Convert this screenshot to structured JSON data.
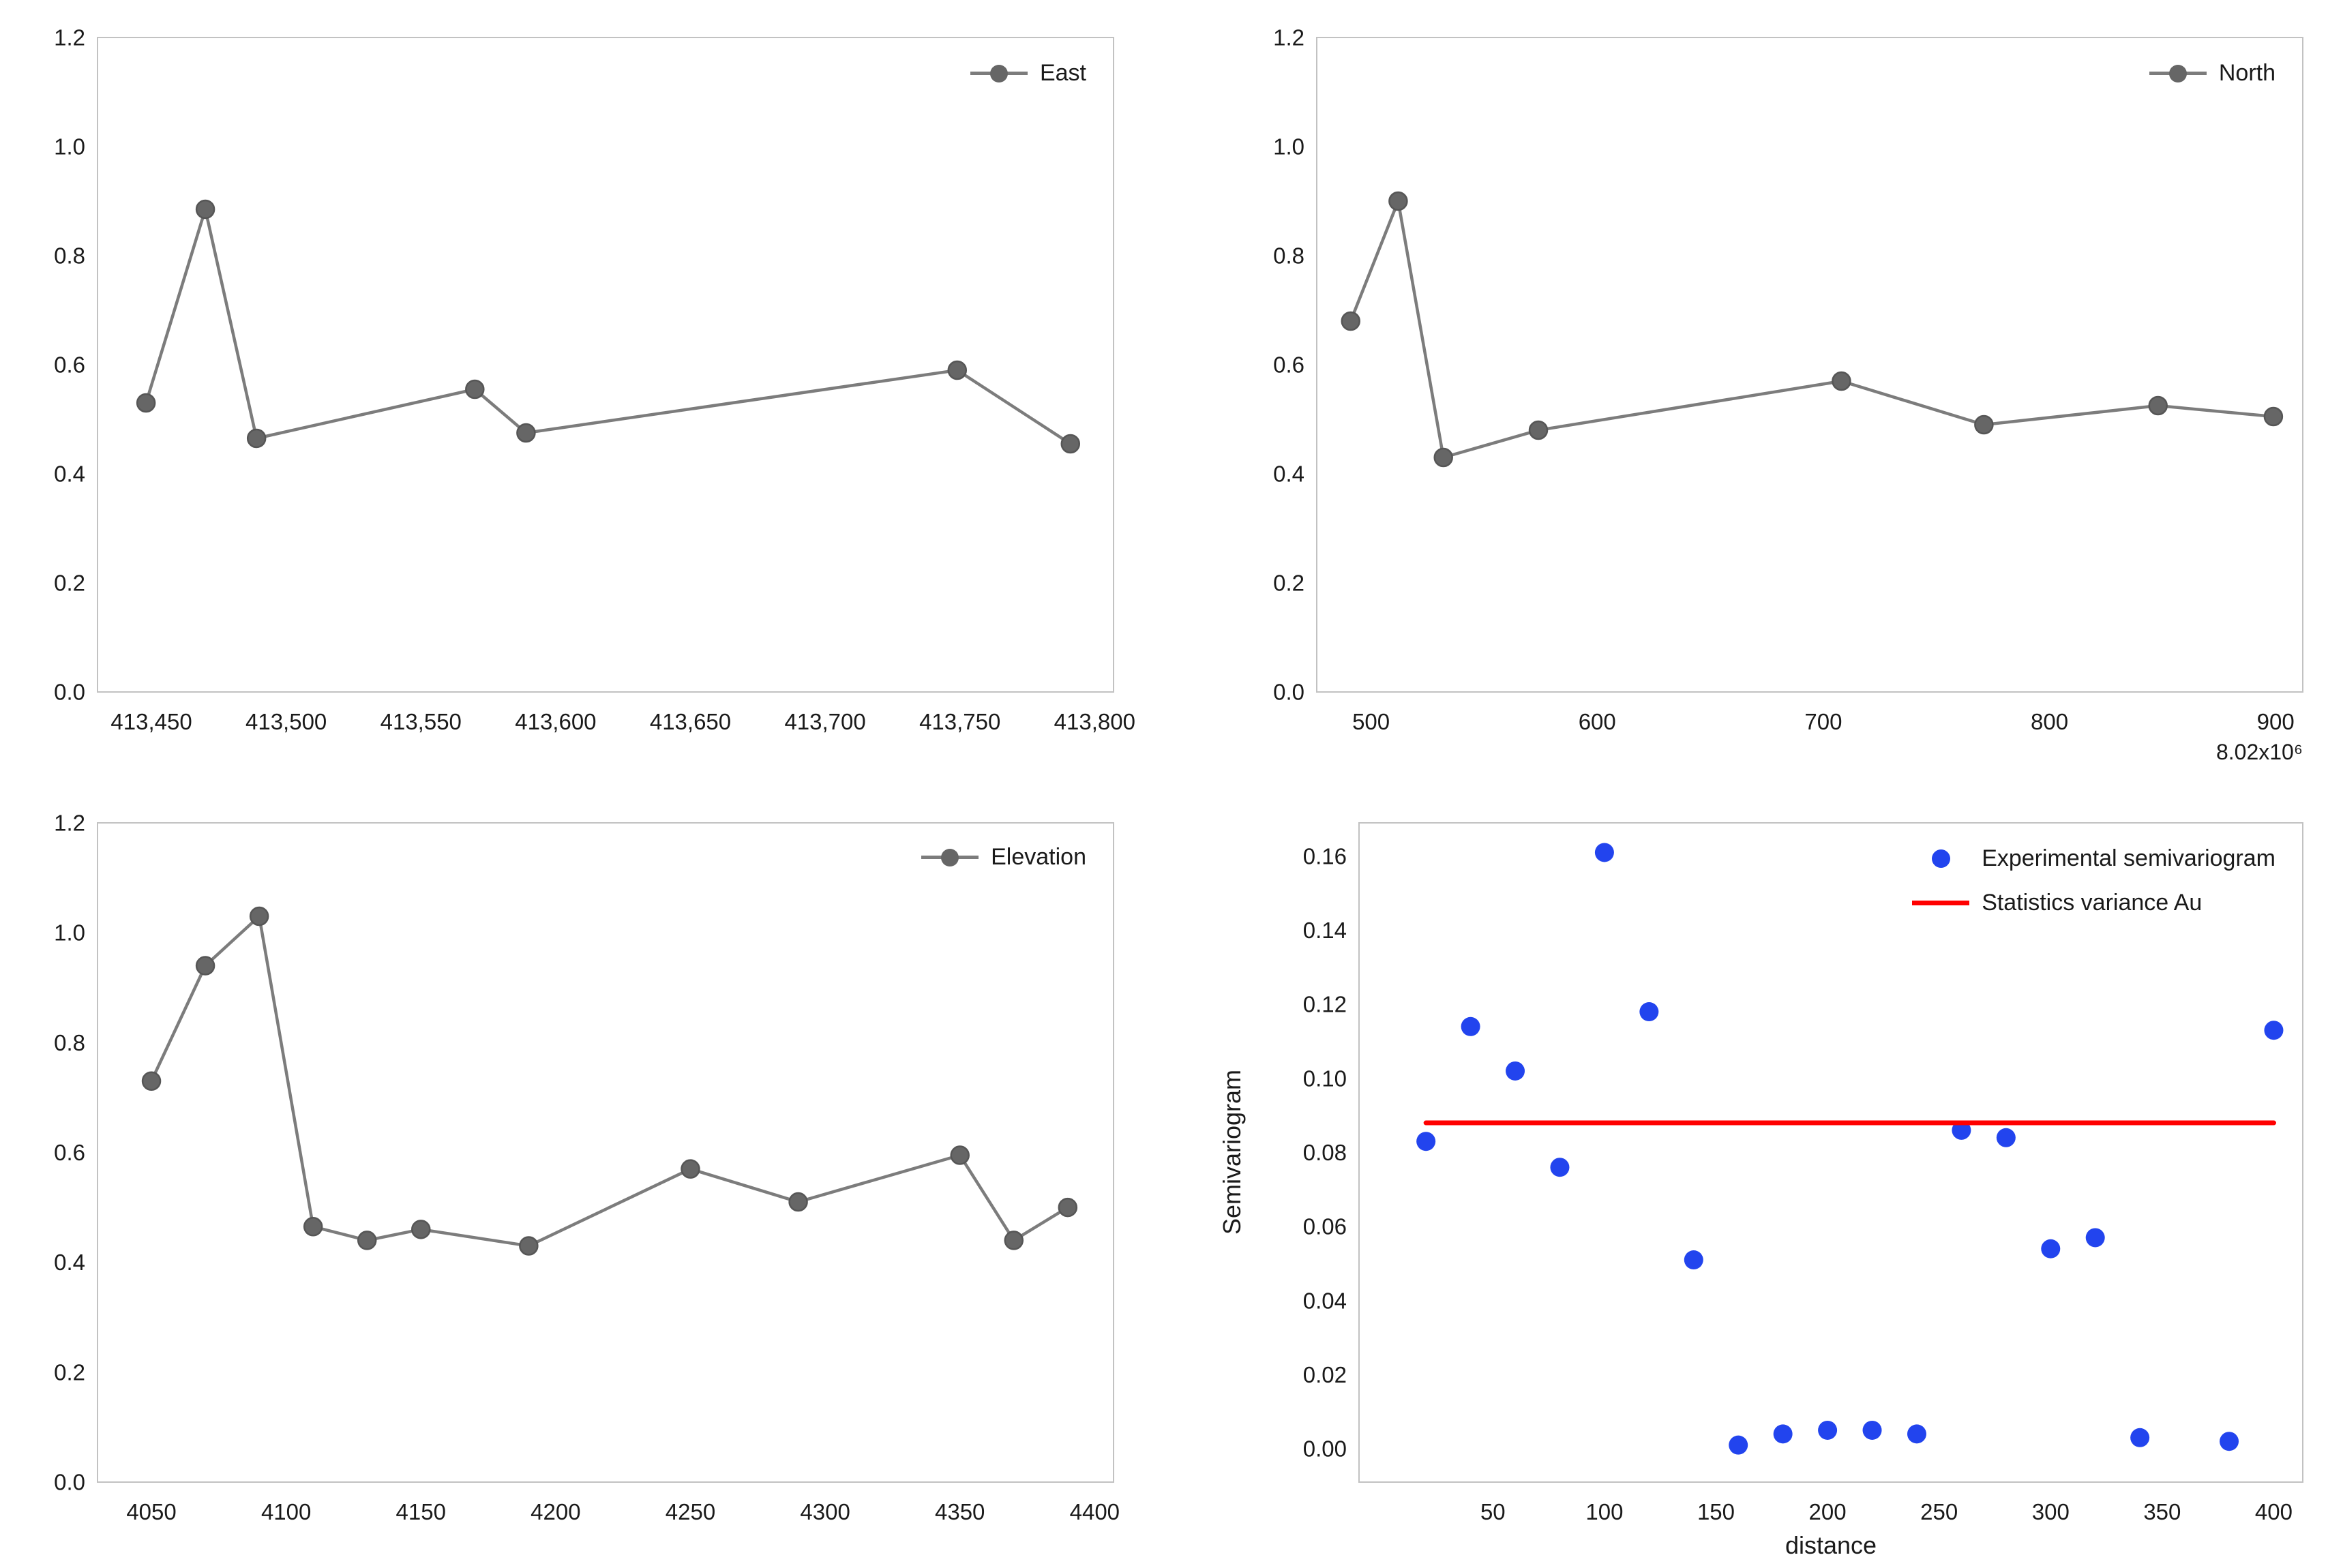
{
  "figure": {
    "background": "#ffffff",
    "text_color": "#1a1a1a",
    "axis_border_color": "#c2c2c2"
  },
  "chart_data": [
    {
      "id": "east",
      "type": "line",
      "title": "",
      "legend": [
        {
          "label": "East",
          "swatch": "line-marker",
          "line_color": "#7c7c7c",
          "marker_color": "#666666"
        }
      ],
      "xlim": [
        413430,
        413807
      ],
      "ylim": [
        0,
        1.2
      ],
      "grid": false,
      "legend_position": "top-right-inside",
      "xticks": {
        "values": [
          413450,
          413500,
          413550,
          413600,
          413650,
          413700,
          413750,
          413800
        ],
        "labels": [
          "413,450",
          "413,500",
          "413,550",
          "413,600",
          "413,650",
          "413,700",
          "413,750",
          "413,800"
        ]
      },
      "yticks": {
        "values": [
          0,
          0.2,
          0.4,
          0.6,
          0.8,
          1,
          1.2
        ],
        "labels": [
          "0.0",
          "0.2",
          "0.4",
          "0.6",
          "0.8",
          "1.0",
          "1.2"
        ]
      },
      "series": [
        {
          "name": "East",
          "type": "line",
          "color": "#7c7c7c",
          "line_width": 4.5,
          "marker": {
            "color": "#666666",
            "edge_color": "#565656",
            "radius": 13
          },
          "x": [
            413448,
            413470,
            413489,
            413570,
            413589,
            413749,
            413791
          ],
          "y": [
            0.53,
            0.885,
            0.465,
            0.555,
            0.475,
            0.59,
            0.455
          ]
        }
      ]
    },
    {
      "id": "north",
      "type": "line",
      "title": "",
      "legend": [
        {
          "label": "North",
          "swatch": "line-marker",
          "line_color": "#7c7c7c",
          "marker_color": "#666666"
        }
      ],
      "x_offset_label": "8.02x10⁶",
      "xlim": [
        476,
        912
      ],
      "ylim": [
        0,
        1.2
      ],
      "grid": false,
      "legend_position": "top-right-inside",
      "xticks": {
        "values": [
          500,
          600,
          700,
          800,
          900
        ],
        "labels": [
          "500",
          "600",
          "700",
          "800",
          "900"
        ]
      },
      "yticks": {
        "values": [
          0,
          0.2,
          0.4,
          0.6,
          0.8,
          1,
          1.2
        ],
        "labels": [
          "0.0",
          "0.2",
          "0.4",
          "0.6",
          "0.8",
          "1.0",
          "1.2"
        ]
      },
      "series": [
        {
          "name": "North",
          "type": "line",
          "color": "#7c7c7c",
          "line_width": 4.5,
          "marker": {
            "color": "#666666",
            "edge_color": "#565656",
            "radius": 13
          },
          "x": [
            491,
            512,
            532,
            574,
            708,
            771,
            848,
            899
          ],
          "y": [
            0.68,
            0.9,
            0.43,
            0.48,
            0.57,
            0.49,
            0.525,
            0.505
          ]
        }
      ]
    },
    {
      "id": "elevation",
      "type": "line",
      "title": "",
      "legend": [
        {
          "label": "Elevation",
          "swatch": "line-marker",
          "line_color": "#7c7c7c",
          "marker_color": "#666666"
        }
      ],
      "xlim": [
        4030,
        4407
      ],
      "ylim": [
        0,
        1.2
      ],
      "grid": false,
      "legend_position": "top-right-inside",
      "xticks": {
        "values": [
          4050,
          4100,
          4150,
          4200,
          4250,
          4300,
          4350,
          4400
        ],
        "labels": [
          "4050",
          "4100",
          "4150",
          "4200",
          "4250",
          "4300",
          "4350",
          "4400"
        ]
      },
      "yticks": {
        "values": [
          0,
          0.2,
          0.4,
          0.6,
          0.8,
          1,
          1.2
        ],
        "labels": [
          "0.0",
          "0.2",
          "0.4",
          "0.6",
          "0.8",
          "1.0",
          "1.2"
        ]
      },
      "series": [
        {
          "name": "Elevation",
          "type": "line",
          "color": "#7c7c7c",
          "line_width": 4.5,
          "marker": {
            "color": "#666666",
            "edge_color": "#565656",
            "radius": 13
          },
          "x": [
            4050,
            4070,
            4090,
            4110,
            4130,
            4150,
            4190,
            4250,
            4290,
            4350,
            4370,
            4390
          ],
          "y": [
            0.73,
            0.94,
            1.03,
            0.465,
            0.44,
            0.46,
            0.43,
            0.57,
            0.51,
            0.595,
            0.44,
            0.5
          ]
        }
      ]
    },
    {
      "id": "semivariogram",
      "type": "scatter",
      "title": "",
      "xlabel": "distance",
      "ylabel": "Semivariogram",
      "legend": [
        {
          "label": "Experimental semivariogram",
          "swatch": "dot",
          "color": "#2244ee"
        },
        {
          "label": "Statistics variance Au",
          "swatch": "line",
          "color": "#ff0000"
        }
      ],
      "xlim": [
        -10,
        413
      ],
      "ylim": [
        -0.009,
        0.169
      ],
      "grid": false,
      "legend_position": "top-right-inside",
      "xticks": {
        "values": [
          50,
          100,
          150,
          200,
          250,
          300,
          350,
          400
        ],
        "labels": [
          "50",
          "100",
          "150",
          "200",
          "250",
          "300",
          "350",
          "400"
        ]
      },
      "yticks": {
        "values": [
          0,
          0.02,
          0.04,
          0.06,
          0.08,
          0.1,
          0.12,
          0.14,
          0.16
        ],
        "labels": [
          "0.00",
          "0.02",
          "0.04",
          "0.06",
          "0.08",
          "0.10",
          "0.12",
          "0.14",
          "0.16"
        ]
      },
      "series": [
        {
          "name": "Experimental semivariogram",
          "type": "scatter",
          "color": "#2244ee",
          "marker": {
            "color": "#2244ee",
            "radius": 14
          },
          "x": [
            20,
            40,
            60,
            80,
            100,
            120,
            140,
            160,
            180,
            200,
            220,
            240,
            260,
            280,
            300,
            320,
            340,
            380,
            400
          ],
          "y": [
            0.083,
            0.114,
            0.102,
            0.076,
            0.161,
            0.118,
            0.051,
            0.001,
            0.004,
            0.005,
            0.005,
            0.004,
            0.086,
            0.084,
            0.054,
            0.057,
            0.003,
            0.002,
            0.113
          ]
        },
        {
          "name": "Statistics variance Au",
          "type": "line",
          "color": "#ff0000",
          "line_width": 7,
          "x": [
            20,
            400
          ],
          "y": [
            0.088,
            0.088
          ]
        }
      ]
    }
  ]
}
